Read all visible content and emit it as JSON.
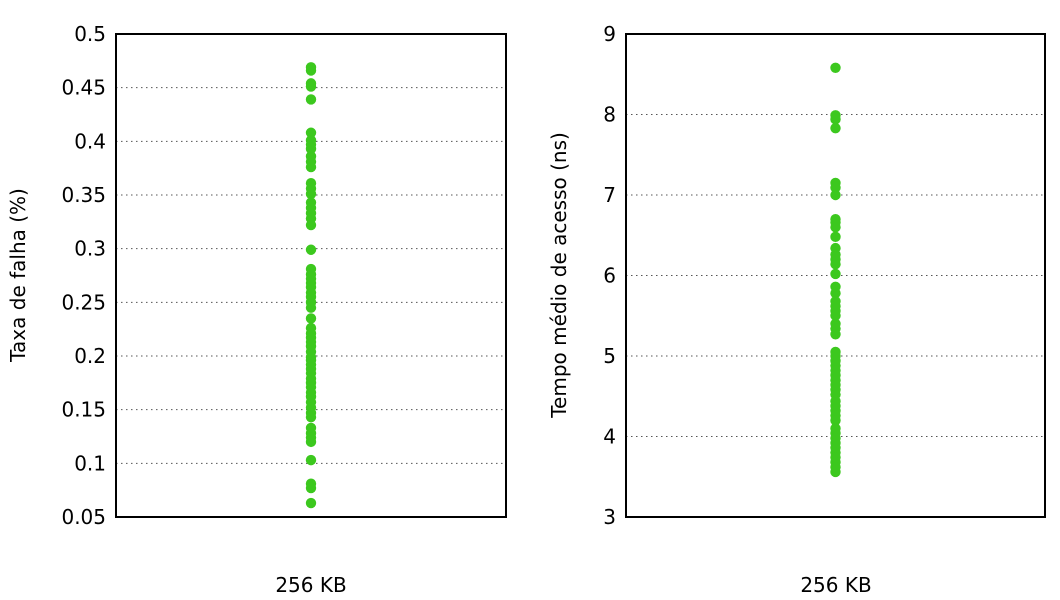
{
  "chart_data": [
    {
      "type": "scatter",
      "title": "",
      "xlabel": "",
      "ylabel": "Taxa de falha (%)",
      "categories": [
        "256 KB"
      ],
      "ylim": [
        0.05,
        0.5
      ],
      "yticks": [
        0.05,
        0.1,
        0.15,
        0.2,
        0.25,
        0.3,
        0.35,
        0.4,
        0.45,
        0.5
      ],
      "ytick_labels": [
        "0.05",
        "0.1",
        "0.15",
        "0.2",
        "0.25",
        "0.3",
        "0.35",
        "0.4",
        "0.45",
        "0.5"
      ],
      "grid": "horizontal-dotted",
      "point_color": "#3cc81e",
      "series": [
        {
          "category": "256 KB",
          "values": [
            0.469,
            0.466,
            0.454,
            0.451,
            0.439,
            0.408,
            0.401,
            0.397,
            0.393,
            0.386,
            0.381,
            0.376,
            0.361,
            0.356,
            0.351,
            0.343,
            0.338,
            0.333,
            0.328,
            0.322,
            0.299,
            0.281,
            0.276,
            0.272,
            0.268,
            0.264,
            0.259,
            0.255,
            0.25,
            0.245,
            0.235,
            0.226,
            0.221,
            0.217,
            0.213,
            0.209,
            0.204,
            0.199,
            0.196,
            0.192,
            0.188,
            0.184,
            0.179,
            0.175,
            0.171,
            0.166,
            0.162,
            0.157,
            0.152,
            0.147,
            0.143,
            0.133,
            0.128,
            0.124,
            0.12,
            0.103,
            0.081,
            0.077,
            0.063
          ]
        }
      ]
    },
    {
      "type": "scatter",
      "title": "",
      "xlabel": "",
      "ylabel": "Tempo médio de acesso (ns)",
      "categories": [
        "256 KB"
      ],
      "ylim": [
        3,
        9
      ],
      "yticks": [
        3,
        4,
        5,
        6,
        7,
        8,
        9
      ],
      "ytick_labels": [
        "3",
        "4",
        "5",
        "6",
        "7",
        "8",
        "9"
      ],
      "grid": "horizontal-dotted",
      "point_color": "#3cc81e",
      "series": [
        {
          "category": "256 KB",
          "values": [
            8.58,
            7.99,
            7.94,
            7.83,
            7.15,
            7.09,
            7.0,
            6.7,
            6.66,
            6.6,
            6.48,
            6.34,
            6.26,
            6.2,
            6.14,
            6.02,
            5.86,
            5.78,
            5.68,
            5.62,
            5.56,
            5.5,
            5.4,
            5.34,
            5.27,
            5.05,
            5.0,
            4.94,
            4.88,
            4.82,
            4.76,
            4.7,
            4.64,
            4.58,
            4.52,
            4.44,
            4.38,
            4.32,
            4.26,
            4.2,
            4.1,
            4.04,
            3.98,
            3.92,
            3.86,
            3.8,
            3.74,
            3.68,
            3.62,
            3.56
          ]
        }
      ]
    }
  ]
}
